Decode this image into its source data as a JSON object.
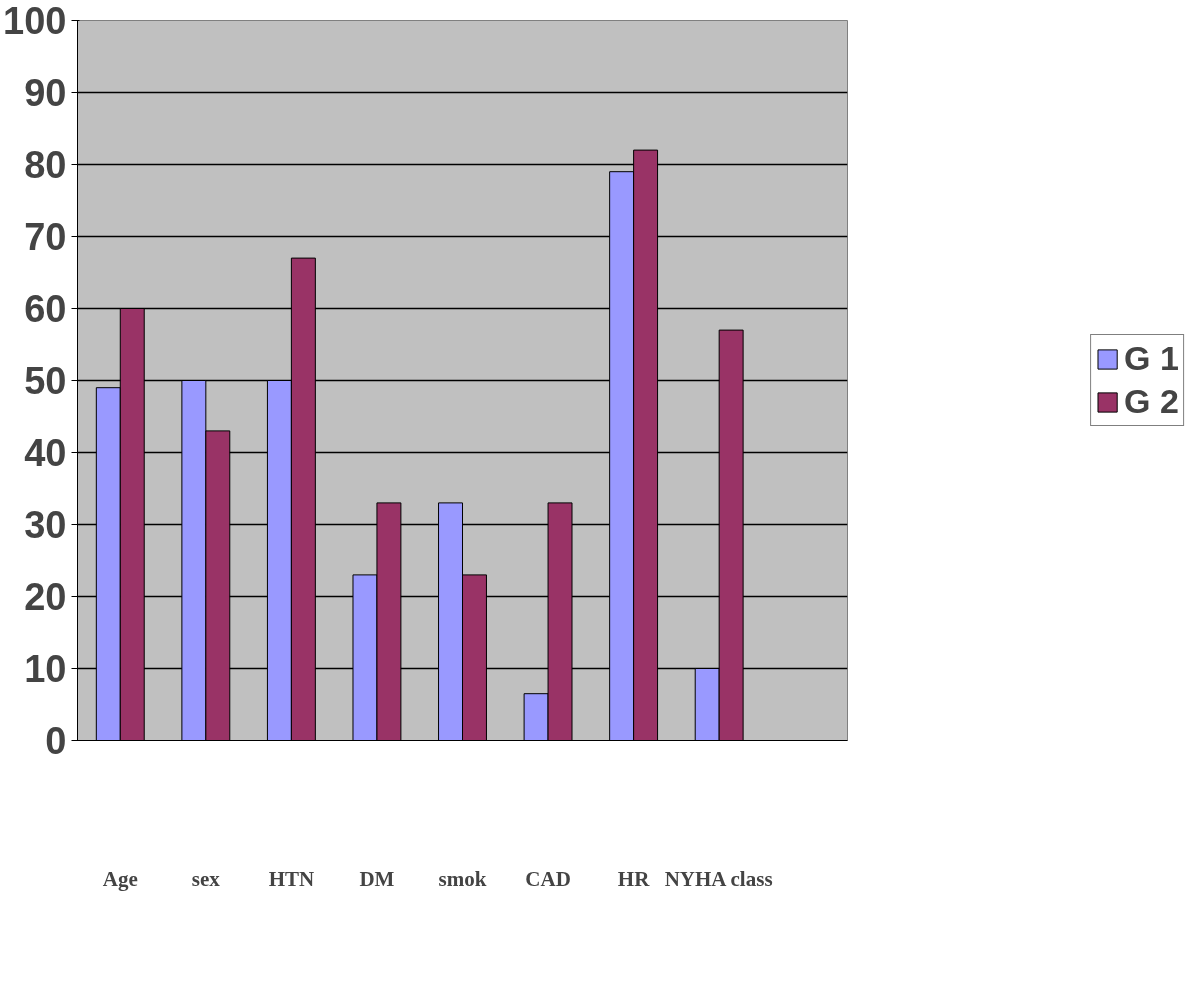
{
  "chart_data": {
    "type": "bar",
    "categories": [
      "Age",
      "sex",
      "HTN",
      "DM",
      "smok",
      "CAD",
      "HR",
      "NYHA class",
      null
    ],
    "series": [
      {
        "name": "G 1",
        "color": "#9999ff",
        "values": [
          49,
          50,
          50,
          23,
          33,
          6.5,
          79,
          10,
          null
        ]
      },
      {
        "name": "G 2",
        "color": "#993366",
        "values": [
          60,
          43,
          67,
          33,
          23,
          33,
          82,
          57,
          null
        ]
      }
    ],
    "ylim": [
      0,
      100
    ],
    "yticks": [
      0,
      10,
      20,
      30,
      40,
      50,
      60,
      70,
      80,
      90,
      100
    ],
    "grid": "y",
    "legend": "right"
  }
}
